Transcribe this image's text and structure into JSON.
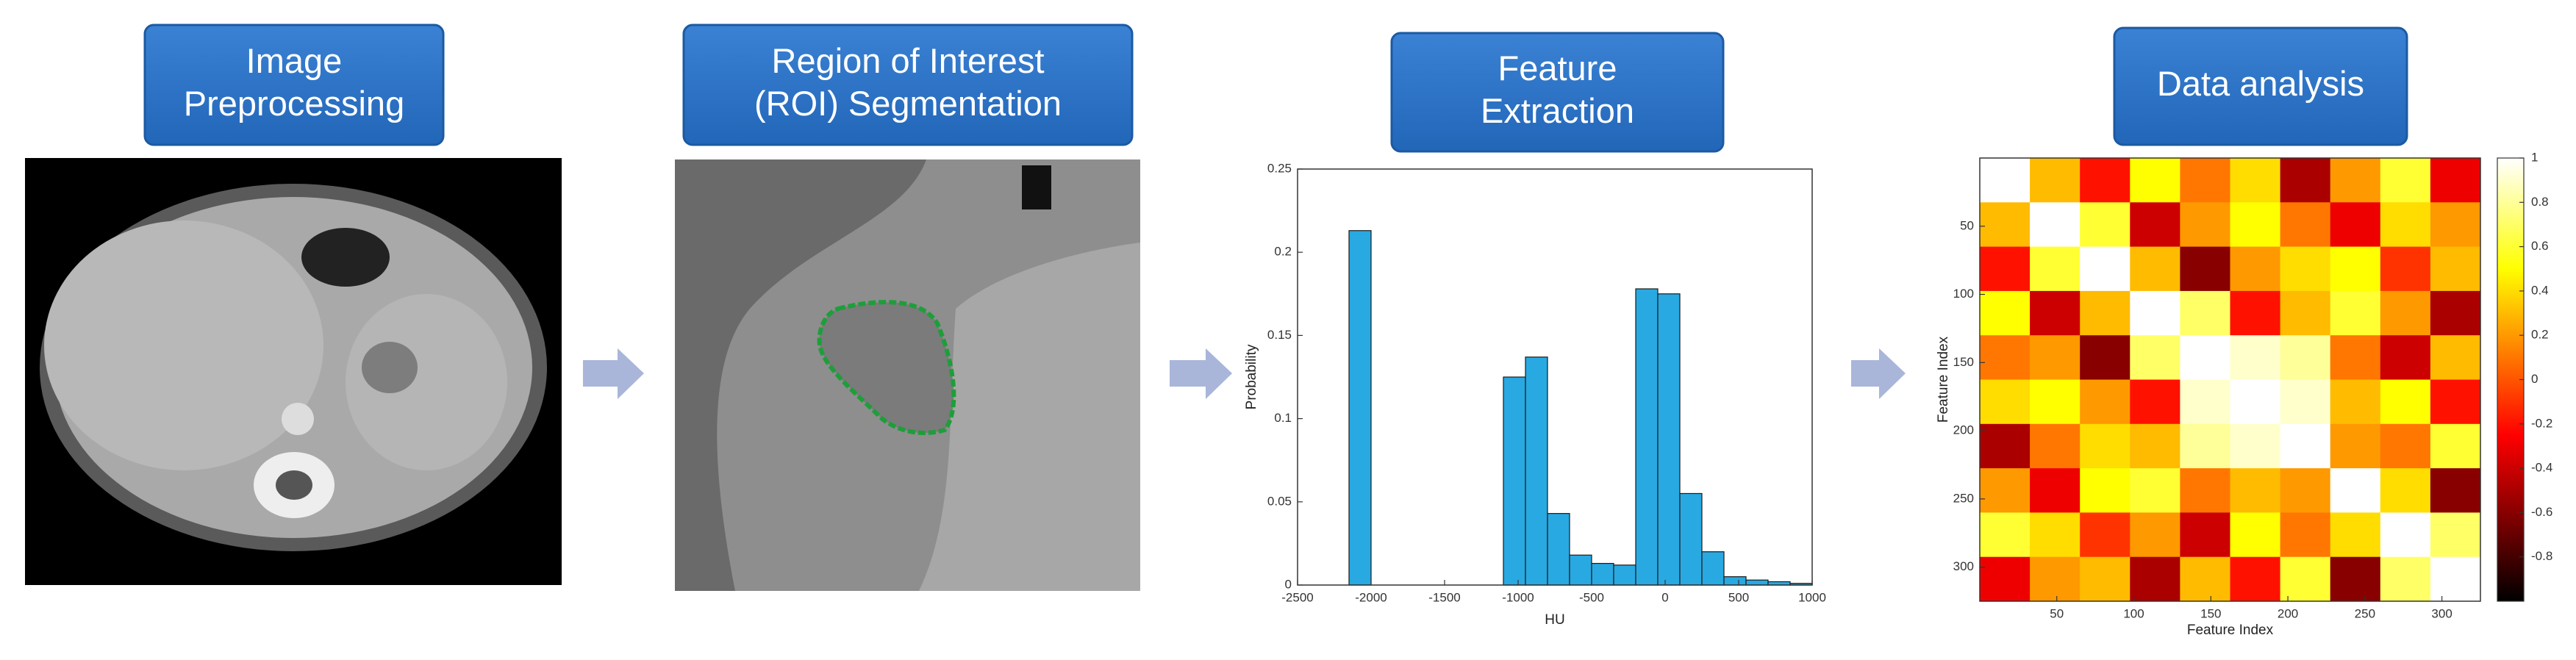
{
  "steps": [
    {
      "lines": [
        "Image",
        "Preprocessing"
      ]
    },
    {
      "lines": [
        "Region of Interest",
        "(ROI) Segmentation"
      ]
    },
    {
      "lines": [
        "Feature",
        "Extraction"
      ]
    },
    {
      "lines": [
        "Data analysis"
      ]
    }
  ],
  "chart_data": [
    {
      "type": "histogram",
      "x_label": "HU",
      "y_label": "Probability",
      "color": "#29a9e1",
      "bins": [
        -2150,
        -2000,
        -1850,
        -1700,
        -1550,
        -1400,
        -1250,
        -1100,
        -950,
        -800,
        -650,
        -500,
        -350,
        -200,
        -50,
        100,
        250,
        400,
        550,
        700,
        850,
        1000
      ],
      "counts": [
        0.213,
        0,
        0,
        0,
        0,
        0,
        0,
        0.125,
        0.137,
        0.043,
        0.018,
        0.013,
        0.012,
        0.178,
        0.175,
        0.055,
        0.02,
        0.005,
        0.003,
        0.002,
        0.001
      ],
      "xlim": [
        -2500,
        1000
      ],
      "xticks": [
        -2500,
        -2000,
        -1500,
        -1000,
        -500,
        0,
        500,
        1000
      ],
      "ylim": [
        0,
        0.25
      ],
      "yticks": [
        0,
        0.05,
        0.1,
        0.15,
        0.2,
        0.25
      ]
    },
    {
      "type": "heatmap",
      "x_label": "Feature Index",
      "y_label": "Feature Index",
      "xlim": [
        0,
        325
      ],
      "ylim": [
        0,
        325
      ],
      "xticks": [
        50,
        100,
        150,
        200,
        250,
        300
      ],
      "yticks": [
        50,
        100,
        150,
        200,
        250,
        300
      ],
      "colorbar_lim": [
        -1,
        1
      ],
      "colorbar_ticks": [
        -0.8,
        -0.6,
        -0.4,
        -0.2,
        0,
        0.2,
        0.4,
        0.6,
        0.8,
        1
      ],
      "values": [
        [
          1,
          0.3,
          -0.2,
          0.5,
          0.1,
          0.4,
          -0.5,
          0.2,
          0.6,
          -0.3
        ],
        [
          0.3,
          1,
          0.6,
          -0.4,
          0.2,
          0.5,
          0.1,
          -0.3,
          0.4,
          0.2
        ],
        [
          -0.2,
          0.6,
          1,
          0.3,
          -0.6,
          0.2,
          0.4,
          0.5,
          -0.1,
          0.3
        ],
        [
          0.5,
          -0.4,
          0.3,
          1,
          0.7,
          -0.2,
          0.3,
          0.6,
          0.2,
          -0.5
        ],
        [
          0.1,
          0.2,
          -0.6,
          0.7,
          1,
          0.9,
          0.8,
          0.1,
          -0.4,
          0.3
        ],
        [
          0.4,
          0.5,
          0.2,
          -0.2,
          0.9,
          1,
          0.9,
          0.3,
          0.5,
          -0.2
        ],
        [
          -0.5,
          0.1,
          0.4,
          0.3,
          0.8,
          0.9,
          1,
          0.2,
          0.1,
          0.6
        ],
        [
          0.2,
          -0.3,
          0.5,
          0.6,
          0.1,
          0.3,
          0.2,
          1,
          0.4,
          -0.6
        ],
        [
          0.6,
          0.4,
          -0.1,
          0.2,
          -0.4,
          0.5,
          0.1,
          0.4,
          1,
          0.7
        ],
        [
          -0.3,
          0.2,
          0.3,
          -0.5,
          0.3,
          -0.2,
          0.6,
          -0.6,
          0.7,
          1
        ]
      ]
    }
  ]
}
